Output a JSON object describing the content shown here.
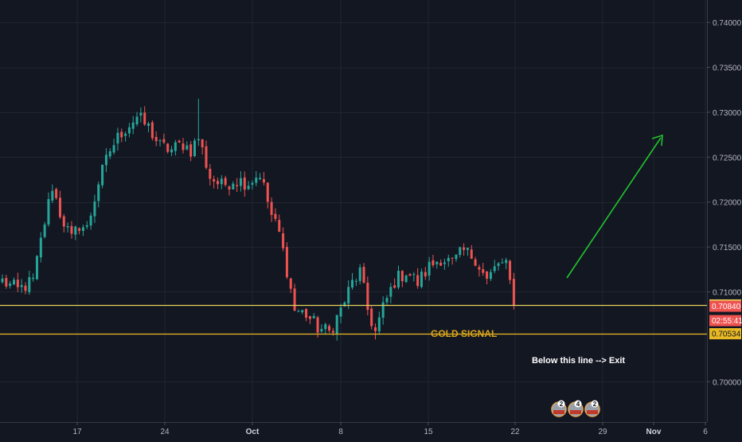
{
  "chart_data": {
    "type": "candlestick",
    "y_axis": {
      "position": "right",
      "min": 0.6955,
      "max": 0.7425,
      "ticks": [
        "0.74000",
        "0.73500",
        "0.73000",
        "0.72500",
        "0.72000",
        "0.71500",
        "0.71000",
        "0.70000"
      ]
    },
    "x_axis": {
      "ticks": [
        {
          "label": "17",
          "bold": false
        },
        {
          "label": "24",
          "bold": false
        },
        {
          "label": "Oct",
          "bold": true
        },
        {
          "label": "8",
          "bold": false
        },
        {
          "label": "15",
          "bold": false
        },
        {
          "label": "22",
          "bold": false
        },
        {
          "label": "29",
          "bold": false
        },
        {
          "label": "Nov",
          "bold": true
        },
        {
          "label": "6",
          "bold": false
        }
      ]
    },
    "grid": true,
    "levels": [
      {
        "label": "0.70854",
        "value": 0.70854,
        "color": "#e8d35a"
      },
      {
        "label": "0.70534",
        "value": 0.70534,
        "color": "#e8b923"
      }
    ],
    "price_tags": [
      {
        "label": "0.70840",
        "value": 0.7084,
        "bg": "#ef5350",
        "fg": "#ffffff"
      },
      {
        "label": "02:55:41",
        "value": 0.7068,
        "bg": "#ef5350",
        "fg": "#ffffff"
      }
    ],
    "annotations": {
      "signal": "GOLD SIGNAL",
      "exit": "Below this line --> Exit"
    },
    "arrow_color": "#22c32e",
    "up_color": "#26a69a",
    "down_color": "#ef5350",
    "badges": [
      "2",
      "4",
      "2"
    ],
    "anchors": [
      [
        0,
        0.7112
      ],
      [
        4,
        0.7102
      ],
      [
        8,
        0.7112
      ],
      [
        11,
        0.7178
      ],
      [
        13,
        0.7218
      ],
      [
        15,
        0.7188
      ],
      [
        18,
        0.7158
      ],
      [
        20,
        0.7175
      ],
      [
        22,
        0.717
      ],
      [
        25,
        0.7222
      ],
      [
        28,
        0.7258
      ],
      [
        31,
        0.7278
      ],
      [
        35,
        0.7295
      ],
      [
        38,
        0.7283
      ],
      [
        41,
        0.7262
      ],
      [
        44,
        0.7258
      ],
      [
        47,
        0.7265
      ],
      [
        49,
        0.7258
      ],
      [
        51,
        0.7272
      ],
      [
        54,
        0.7228
      ],
      [
        57,
        0.7218
      ],
      [
        60,
        0.7225
      ],
      [
        64,
        0.7222
      ],
      [
        67,
        0.7232
      ],
      [
        70,
        0.7185
      ],
      [
        72,
        0.7165
      ],
      [
        74,
        0.7125
      ],
      [
        76,
        0.708
      ],
      [
        79,
        0.7075
      ],
      [
        82,
        0.706
      ],
      [
        85,
        0.7055
      ],
      [
        88,
        0.708
      ],
      [
        91,
        0.711
      ],
      [
        93,
        0.7122
      ],
      [
        95,
        0.708
      ],
      [
        97,
        0.7055
      ],
      [
        99,
        0.7082
      ],
      [
        102,
        0.7112
      ],
      [
        105,
        0.7123
      ],
      [
        108,
        0.711
      ],
      [
        111,
        0.7128
      ],
      [
        114,
        0.7138
      ],
      [
        117,
        0.7132
      ],
      [
        120,
        0.7145
      ],
      [
        123,
        0.7138
      ],
      [
        126,
        0.7112
      ],
      [
        129,
        0.7132
      ],
      [
        131,
        0.7128
      ],
      [
        133,
        0.7092
      ]
    ]
  }
}
